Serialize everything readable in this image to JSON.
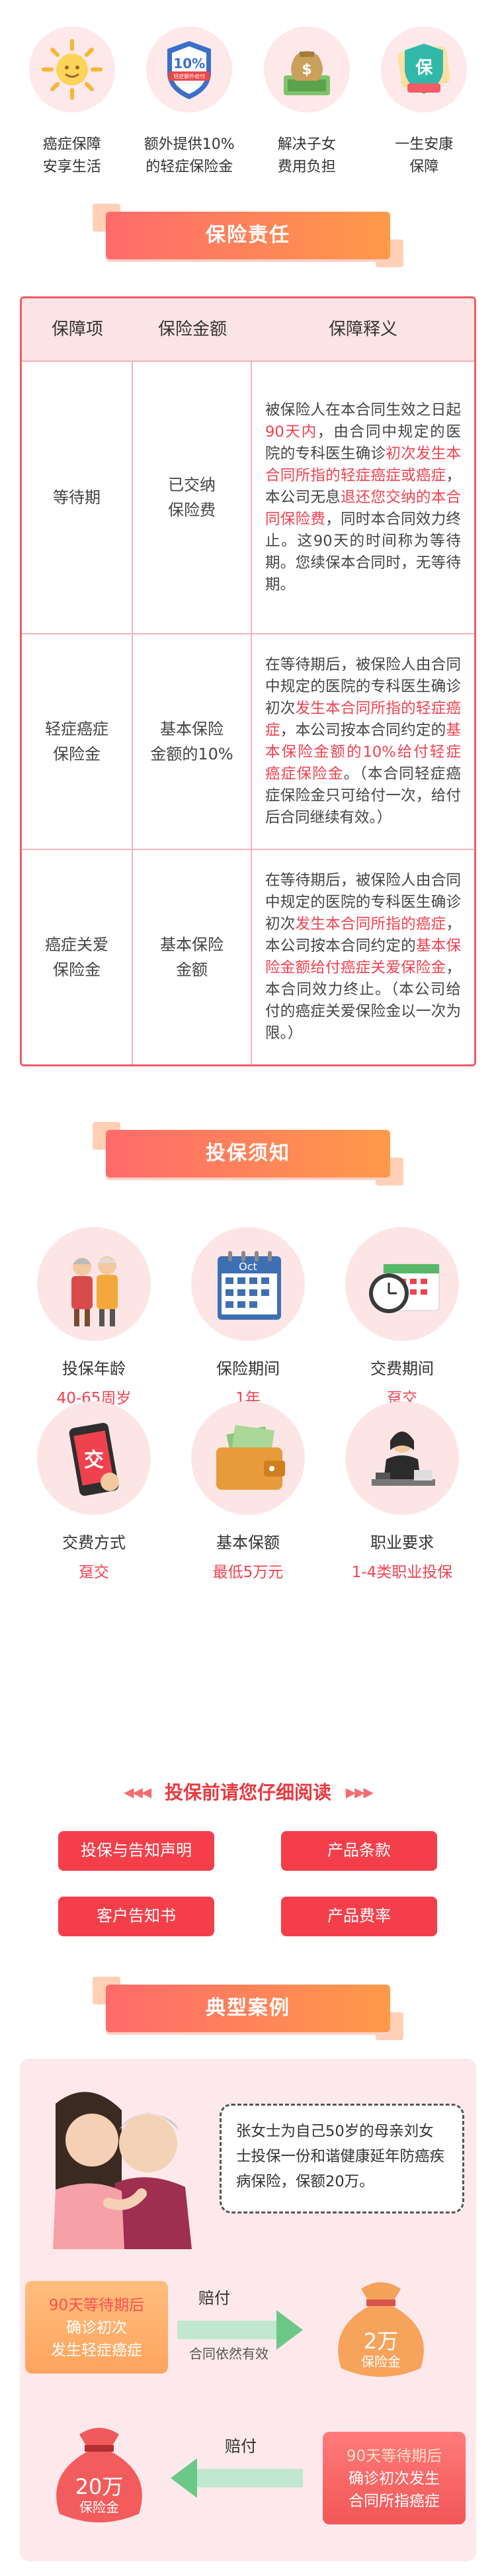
{
  "features": [
    {
      "icon": "sun-icon",
      "line1": "癌症保障",
      "line2": "安享生活"
    },
    {
      "icon": "badge-10-percent-icon",
      "badge": "10%",
      "badge_sub": "轻症额外给付",
      "line1": "额外提供10%",
      "line2": "的轻症保险金"
    },
    {
      "icon": "money-bag-icon",
      "line1": "解决子女",
      "line2": "费用负担"
    },
    {
      "icon": "shield-icon",
      "shield_text": "保",
      "line1": "一生安康",
      "line2": "保障"
    }
  ],
  "sections": {
    "responsibility": "保险责任",
    "notice": "投保须知",
    "case": "典型案例"
  },
  "table": {
    "headers": [
      "保障项",
      "保险金额",
      "保障释义"
    ],
    "rows": [
      {
        "item": "等待期",
        "amount": "已交纳\n保险费",
        "desc": [
          {
            "t": "被保险人在本合同生效之日起"
          },
          {
            "t": "90天内",
            "h": true
          },
          {
            "t": "，由合同中规定的医院的专科医生确诊"
          },
          {
            "t": "初次发生本合同所指的轻症癌症或癌症",
            "h": true
          },
          {
            "t": "，本公司无息"
          },
          {
            "t": "退还您交纳的本合同保险费",
            "h": true
          },
          {
            "t": "，同时本合同效力终止。这90天的时间称为等待期。您续保本合同时，无等待期。"
          }
        ]
      },
      {
        "item": "轻症癌症\n保险金",
        "amount": "基本保险\n金额的10%",
        "desc": [
          {
            "t": "在等待期后，被保险人由合同中规定的医院的专科医生确诊初次"
          },
          {
            "t": "发生本合同所指的轻症癌症",
            "h": true
          },
          {
            "t": "，本公司按本合同约定的"
          },
          {
            "t": "基本保险金额的10%给付轻症癌症保险金",
            "h": true
          },
          {
            "t": "。（本合同轻症癌症保险金只可给付一次，给付后合同继续有效。）"
          }
        ]
      },
      {
        "item": "癌症关爱\n保险金",
        "amount": "基本保险\n金额",
        "desc": [
          {
            "t": "在等待期后，被保险人由合同中规定的医院的专科医生确诊初次"
          },
          {
            "t": "发生本合同所指的癌症",
            "h": true
          },
          {
            "t": "，本公司按本合同约定的"
          },
          {
            "t": "基本保险金额给付癌症关爱保险金",
            "h": true
          },
          {
            "t": "，本合同效力终止。（本公司给付的癌症关爱保险金以一次为限。）"
          }
        ]
      }
    ]
  },
  "notice": [
    {
      "icon": "elderly-couple-icon",
      "title": "投保年龄",
      "value": "40-65周岁"
    },
    {
      "icon": "calendar-icon",
      "title": "保险期间",
      "value": "1年",
      "cal_label": "Oct"
    },
    {
      "icon": "clock-calendar-icon",
      "title": "交费期间",
      "value": "趸交"
    },
    {
      "icon": "phone-pay-icon",
      "title": "交费方式",
      "value": "趸交",
      "phone_text": "交"
    },
    {
      "icon": "wallet-icon",
      "title": "基本保额",
      "value": "最低5万元"
    },
    {
      "icon": "office-worker-icon",
      "title": "职业要求",
      "value": "1-4类职业投保"
    }
  ],
  "read_before": {
    "title": "投保前请您仔细阅读",
    "buttons": [
      "投保与告知声明",
      "产品条款",
      "客户告知书",
      "产品费率"
    ]
  },
  "case": {
    "story": "张女士为自己50岁的母亲刘女士投保一份和谐健康延年防癌疾病保险，保额20万。",
    "box1": {
      "top": "90天等待期后",
      "line2": "确诊初次",
      "line3": "发生轻症癌症"
    },
    "pay1": "赔付",
    "pay1_sub": "合同依然有效",
    "bag1": {
      "amount": "2万",
      "label": "保险金"
    },
    "box2": {
      "top": "90天等待期后",
      "line2": "确诊初次发生",
      "line3": "合同所指癌症"
    },
    "pay2": "赔付",
    "bag2": {
      "amount": "20万",
      "label": "保险金"
    }
  },
  "colors": {
    "accent": "#f0414f",
    "banner_start": "#ff6b6b",
    "banner_end": "#ff9a4a",
    "pink_bg": "#fde8ea"
  }
}
